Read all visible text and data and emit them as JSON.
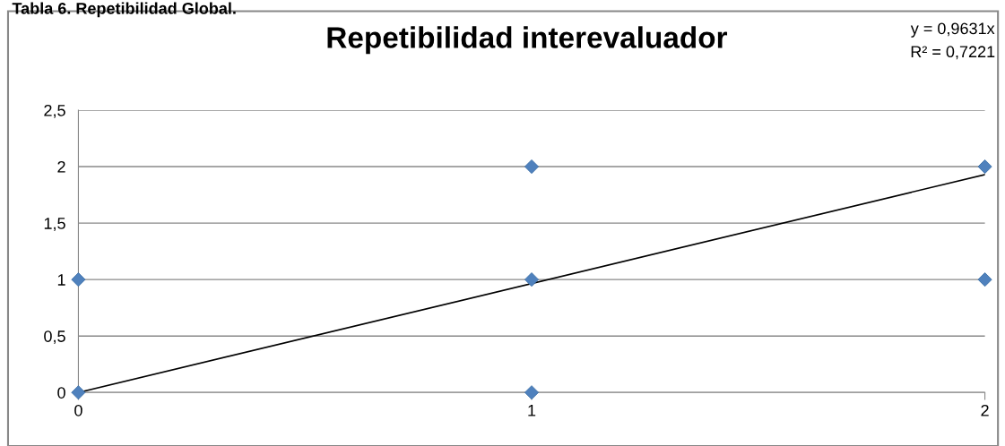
{
  "chart_data": {
    "type": "scatter",
    "title": "Repetibilidad interevaluador",
    "annotations": [
      "Tabla 6. Repetibilidad Global.",
      "y = 0,9631x",
      "R² = 0,7221"
    ],
    "series": [
      {
        "color": "#4f81bd",
        "marker": "diamond",
        "x": [
          0,
          0,
          1,
          1,
          1,
          2,
          2
        ],
        "values": [
          0,
          1,
          0,
          1,
          2,
          1,
          2
        ]
      },
      {
        "type": "line",
        "color": "#000000",
        "marker": "none",
        "line_style": "solid",
        "x": [
          0,
          2
        ],
        "values": [
          0,
          1.93
        ]
      }
    ],
    "xlim": [
      0,
      2
    ],
    "xticks": [
      0,
      1,
      2
    ],
    "ylim": [
      0,
      2.5
    ],
    "yticks": [
      0,
      {
        "value": 0.5,
        "label": "0,5"
      },
      1,
      {
        "value": 1.5,
        "label": "1,5"
      },
      2,
      {
        "value": 2.5,
        "label": "2,5"
      }
    ],
    "grid": "y",
    "legend": false
  }
}
